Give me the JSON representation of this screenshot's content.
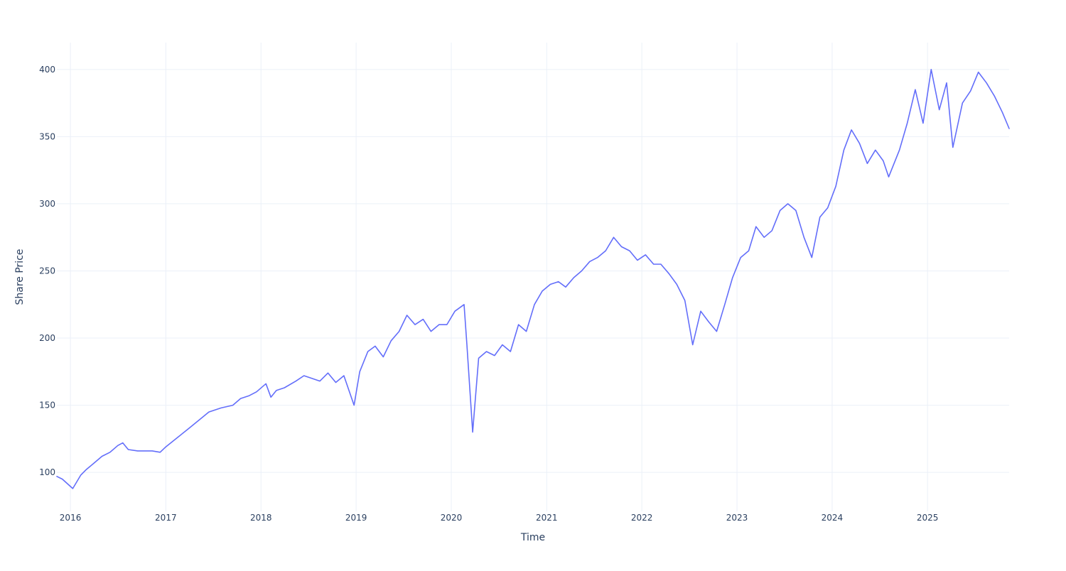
{
  "chart_data": {
    "type": "line",
    "xlabel": "Time",
    "ylabel": "Share Price",
    "x_range": [
      "2015-11-10",
      "2025-11-10"
    ],
    "y_range": [
      71,
      420
    ],
    "x_ticks": [
      {
        "label": "2016",
        "date": "2016-01-01"
      },
      {
        "label": "2017",
        "date": "2017-01-01"
      },
      {
        "label": "2018",
        "date": "2018-01-01"
      },
      {
        "label": "2019",
        "date": "2019-01-01"
      },
      {
        "label": "2020",
        "date": "2020-01-01"
      },
      {
        "label": "2021",
        "date": "2021-01-01"
      },
      {
        "label": "2022",
        "date": "2022-01-01"
      },
      {
        "label": "2023",
        "date": "2023-01-01"
      },
      {
        "label": "2024",
        "date": "2024-01-01"
      },
      {
        "label": "2025",
        "date": "2025-01-01"
      }
    ],
    "y_ticks": [
      100,
      150,
      200,
      250,
      300,
      350,
      400
    ],
    "grid": true,
    "line_color": "#636efa",
    "grid_color": "#ebf0f8",
    "tick_color": "#2a3f5f",
    "series": [
      {
        "x": [
          "2015-11-10",
          "2015-12-01",
          "2016-01-10",
          "2016-02-10",
          "2016-03-01",
          "2016-04-01",
          "2016-05-01",
          "2016-06-01",
          "2016-07-01",
          "2016-07-20",
          "2016-08-10",
          "2016-09-15",
          "2016-10-15",
          "2016-11-10",
          "2016-12-10",
          "2017-01-01",
          "2017-02-15",
          "2017-04-01",
          "2017-05-15",
          "2017-06-15",
          "2017-08-01",
          "2017-09-15",
          "2017-10-15",
          "2017-11-15",
          "2017-12-15",
          "2018-01-20",
          "2018-02-08",
          "2018-03-01",
          "2018-04-01",
          "2018-05-15",
          "2018-06-15",
          "2018-07-15",
          "2018-08-15",
          "2018-09-15",
          "2018-10-15",
          "2018-11-15",
          "2018-12-24",
          "2019-01-15",
          "2019-02-15",
          "2019-03-15",
          "2019-04-15",
          "2019-05-15",
          "2019-06-15",
          "2019-07-15",
          "2019-08-15",
          "2019-09-15",
          "2019-10-15",
          "2019-11-15",
          "2019-12-15",
          "2020-01-15",
          "2020-02-19",
          "2020-03-01",
          "2020-03-23",
          "2020-04-15",
          "2020-05-15",
          "2020-06-15",
          "2020-07-15",
          "2020-08-15",
          "2020-09-15",
          "2020-10-15",
          "2020-11-15",
          "2020-12-15",
          "2021-01-15",
          "2021-02-15",
          "2021-03-15",
          "2021-04-15",
          "2021-05-15",
          "2021-06-15",
          "2021-07-15",
          "2021-08-15",
          "2021-09-15",
          "2021-10-15",
          "2021-11-15",
          "2021-12-15",
          "2022-01-15",
          "2022-02-15",
          "2022-03-15",
          "2022-04-15",
          "2022-05-15",
          "2022-06-15",
          "2022-07-15",
          "2022-08-15",
          "2022-09-15",
          "2022-10-15",
          "2022-11-15",
          "2022-12-15",
          "2023-01-15",
          "2023-02-15",
          "2023-03-15",
          "2023-04-15",
          "2023-05-15",
          "2023-06-15",
          "2023-07-15",
          "2023-08-15",
          "2023-09-15",
          "2023-10-15",
          "2023-11-15",
          "2023-12-15",
          "2024-01-15",
          "2024-02-15",
          "2024-03-15",
          "2024-04-15",
          "2024-05-15",
          "2024-06-15",
          "2024-07-15",
          "2024-08-05",
          "2024-09-15",
          "2024-10-15",
          "2024-11-15",
          "2024-12-15",
          "2025-01-15",
          "2025-02-15",
          "2025-03-15",
          "2025-04-08",
          "2025-05-15",
          "2025-06-15",
          "2025-07-15",
          "2025-08-15",
          "2025-09-15",
          "2025-10-15",
          "2025-11-10"
        ],
        "y": [
          97,
          95,
          88,
          98,
          102,
          107,
          112,
          115,
          120,
          122,
          117,
          116,
          116,
          116,
          115,
          119,
          126,
          133,
          140,
          145,
          148,
          150,
          155,
          157,
          160,
          166,
          156,
          161,
          163,
          168,
          172,
          170,
          168,
          174,
          167,
          172,
          150,
          175,
          190,
          194,
          186,
          198,
          205,
          217,
          210,
          214,
          205,
          210,
          210,
          220,
          225,
          195,
          130,
          185,
          190,
          187,
          195,
          190,
          210,
          205,
          225,
          235,
          240,
          242,
          238,
          245,
          250,
          257,
          260,
          265,
          275,
          268,
          265,
          258,
          262,
          255,
          255,
          248,
          240,
          228,
          195,
          220,
          212,
          205,
          225,
          245,
          260,
          265,
          283,
          275,
          280,
          295,
          300,
          295,
          275,
          260,
          290,
          297,
          313,
          340,
          355,
          345,
          330,
          340,
          332,
          320,
          340,
          360,
          385,
          360,
          400,
          370,
          390,
          342,
          375,
          384,
          398,
          390,
          380,
          368,
          356
        ]
      }
    ]
  }
}
